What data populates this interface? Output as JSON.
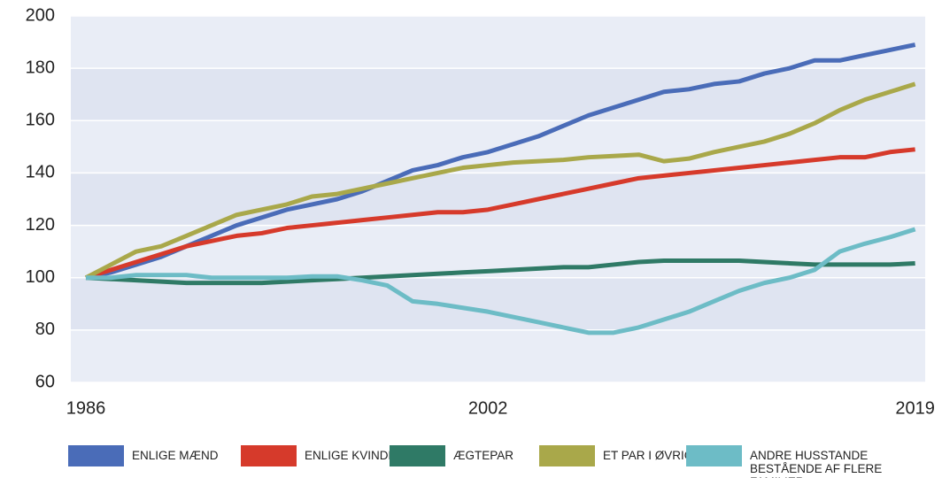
{
  "chart_data": {
    "type": "line",
    "x": [
      1986,
      1987,
      1988,
      1989,
      1990,
      1991,
      1992,
      1993,
      1994,
      1995,
      1996,
      1997,
      1998,
      1999,
      2000,
      2001,
      2002,
      2003,
      2004,
      2005,
      2006,
      2007,
      2008,
      2009,
      2010,
      2011,
      2012,
      2013,
      2014,
      2015,
      2016,
      2017,
      2018,
      2019
    ],
    "xlim": [
      1985.4,
      2019.4
    ],
    "xticks": [
      1986,
      2002,
      2019
    ],
    "ylim": [
      60,
      200
    ],
    "yticks": [
      60,
      80,
      100,
      120,
      140,
      160,
      180,
      200
    ],
    "grid": true,
    "legend": "bottom",
    "series": [
      {
        "name": "ENLIGE MÆND",
        "color": "#4a6cb8",
        "values": [
          100,
          102,
          105,
          108,
          112,
          116,
          120,
          123,
          126,
          128,
          130,
          133,
          137,
          141,
          143,
          146,
          148,
          151,
          154,
          158,
          162,
          165,
          168,
          171,
          172,
          174,
          175,
          178,
          180,
          183,
          183,
          185,
          187,
          189
        ]
      },
      {
        "name": "ENLIGE KVINDER",
        "color": "#d63a2b",
        "values": [
          100,
          103,
          106,
          109,
          112,
          114,
          116,
          117,
          119,
          120,
          121,
          122,
          123,
          124,
          125,
          125,
          126,
          128,
          130,
          132,
          134,
          136,
          138,
          139,
          140,
          141,
          142,
          143,
          144,
          145,
          146,
          146,
          148,
          149
        ]
      },
      {
        "name": "ÆGTEPAR",
        "color": "#2f7a66",
        "values": [
          100,
          99.5,
          99,
          98.5,
          98,
          98,
          98,
          98,
          98.5,
          99,
          99.5,
          100,
          100.5,
          101,
          101.5,
          102,
          102.5,
          103,
          103.5,
          104,
          104,
          105,
          106,
          106.5,
          106.5,
          106.5,
          106.5,
          106,
          105.5,
          105,
          105,
          105,
          105,
          105.5
        ]
      },
      {
        "name": "ET PAR I ØVRIGT",
        "color": "#a9a84a",
        "values": [
          100,
          105,
          110,
          112,
          116,
          120,
          124,
          126,
          128,
          131,
          132,
          134,
          136,
          138,
          140,
          142,
          143,
          144,
          144.5,
          145,
          146,
          146.5,
          147,
          144.5,
          145.5,
          148,
          150,
          152,
          155,
          159,
          164,
          168,
          171,
          174
        ]
      },
      {
        "name": "ANDRE HUSSTANDE BESTÅENDE AF FLERE FAMILIER",
        "color": "#6dbcc6",
        "values": [
          100,
          100,
          101,
          101,
          101,
          100,
          100,
          100,
          100,
          100.5,
          100.5,
          99,
          97,
          91,
          90,
          88.5,
          87,
          85,
          83,
          81,
          79,
          79,
          81,
          84,
          87,
          91,
          95,
          98,
          100,
          103,
          110,
          113,
          115.5,
          118.5
        ]
      }
    ]
  }
}
